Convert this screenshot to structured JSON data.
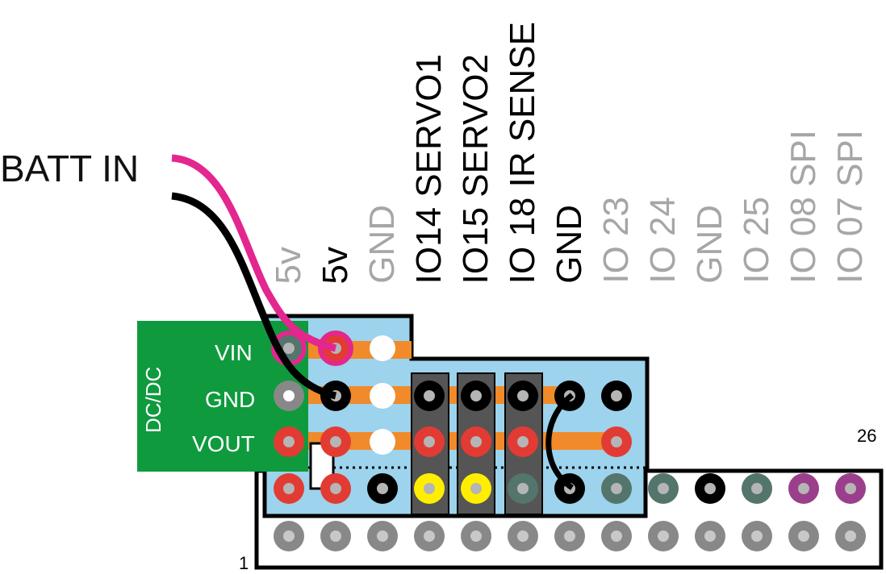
{
  "batt_label": "BATT IN",
  "header_labels": [
    {
      "text": "5v",
      "state": "dim"
    },
    {
      "text": "5v",
      "state": "on"
    },
    {
      "text": "GND",
      "state": "dim"
    },
    {
      "text": "IO14 SERVO1",
      "state": "on"
    },
    {
      "text": "IO15 SERVO2",
      "state": "on"
    },
    {
      "text": "IO 18 IR SENSE",
      "state": "on"
    },
    {
      "text": "GND",
      "state": "on"
    },
    {
      "text": "IO 23",
      "state": "dim"
    },
    {
      "text": "IO 24",
      "state": "dim"
    },
    {
      "text": "GND",
      "state": "dim"
    },
    {
      "text": "IO 25",
      "state": "dim"
    },
    {
      "text": "IO 08 SPI",
      "state": "dim"
    },
    {
      "text": "IO 07 SPI",
      "state": "dim"
    }
  ],
  "dcdc": {
    "title": "DC/DC",
    "vin": "VIN",
    "gnd": "GND",
    "vout": "VOUT"
  },
  "pin_first": "1",
  "pin_last": "26",
  "colors": {
    "board": "#9dd3ec",
    "dcdc": "#0f9a3e",
    "trace": "#f08a2a",
    "wire_batt_pos": "#e4268f",
    "wire_batt_neg": "#000000",
    "pin_red": "#e23b33",
    "pin_black": "#000000",
    "pin_yellow": "#ffee00",
    "pin_teal": "#54756c",
    "pin_purple": "#9b3f8c",
    "pin_gray": "#888888",
    "servo_block": "#555555"
  },
  "top_row_pin_colors": [
    "red",
    "red",
    "black",
    "yellow",
    "yellow",
    "teal",
    "black",
    "teal",
    "teal",
    "black",
    "teal",
    "purple",
    "purple"
  ]
}
